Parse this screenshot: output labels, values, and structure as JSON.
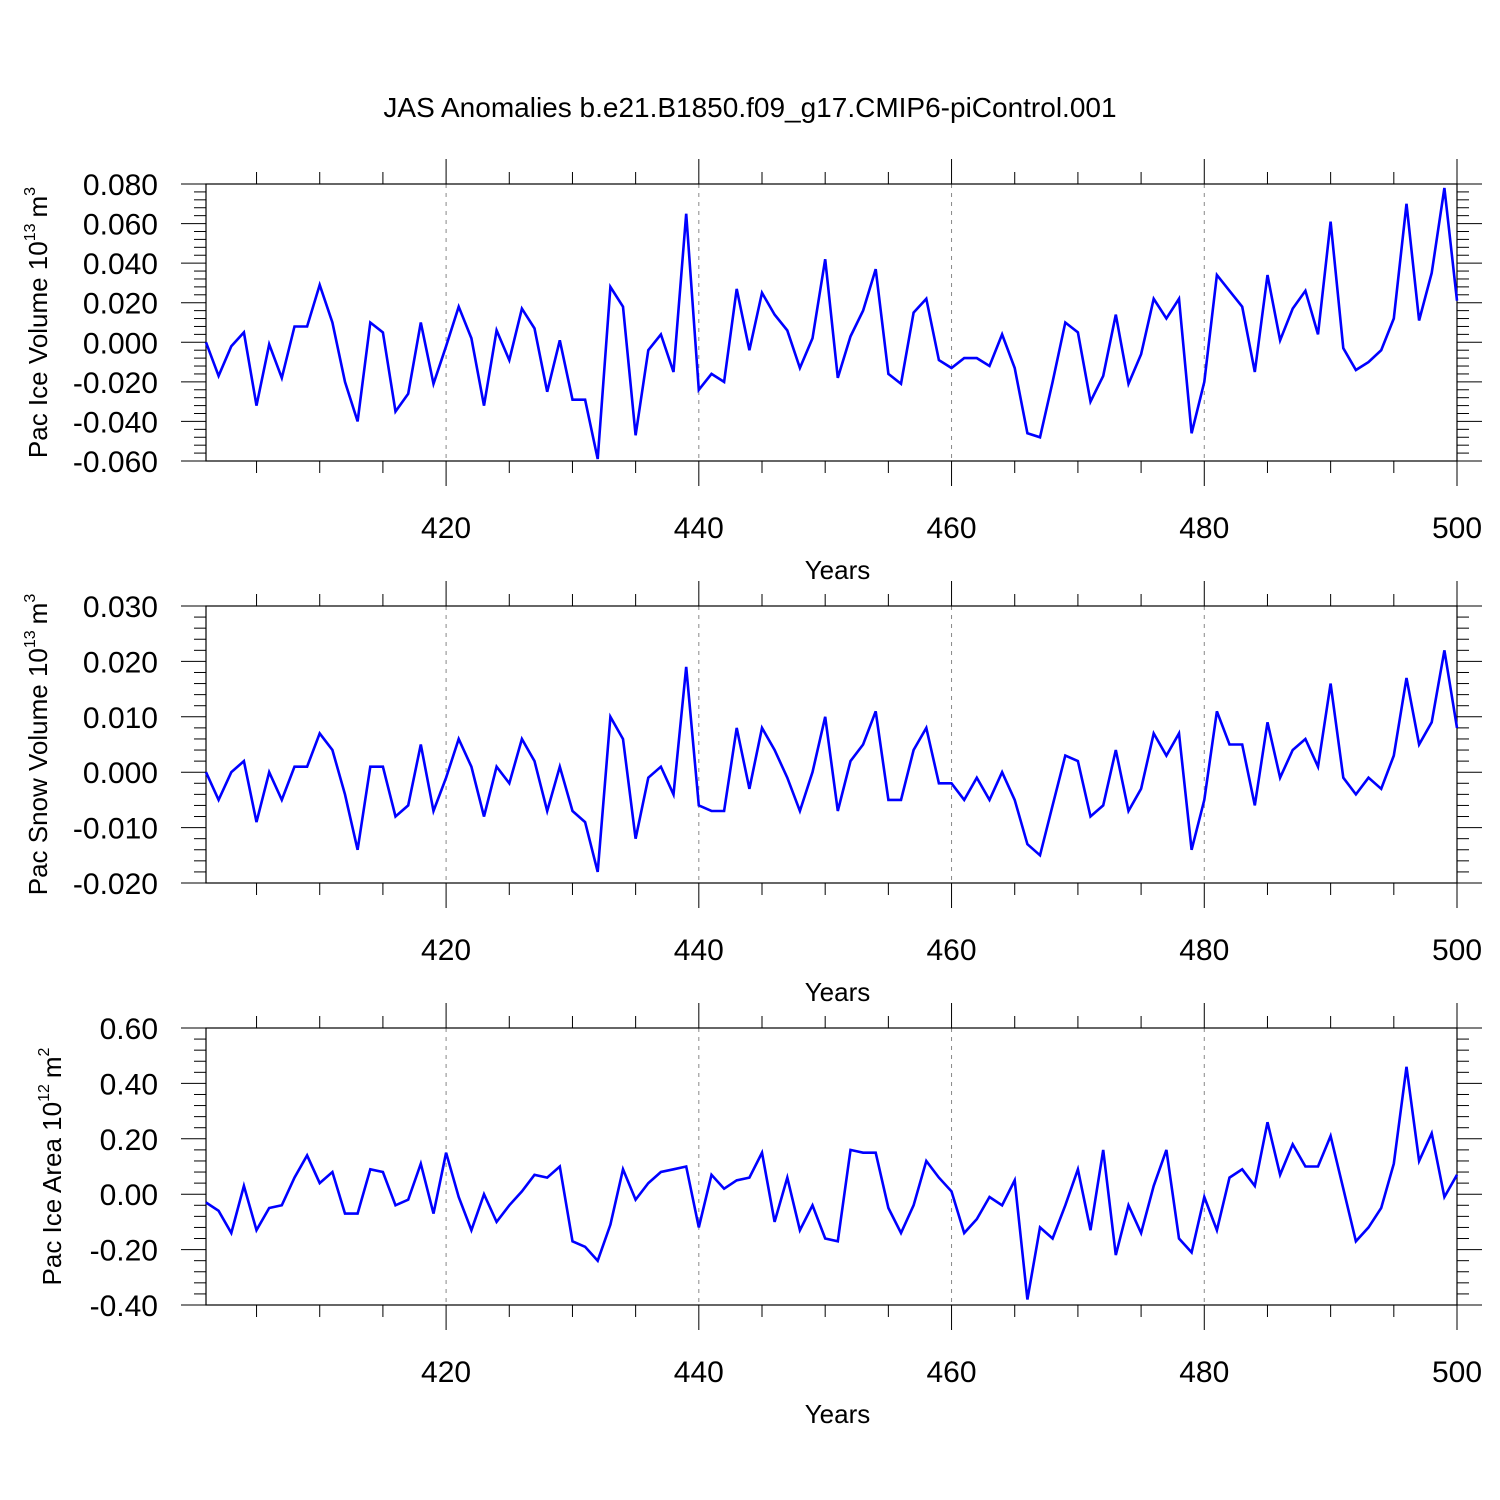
{
  "title": "JAS Anomalies b.e21.B1850.f09_g17.CMIP6-piControl.001",
  "line_color": "#0000ff",
  "grid_color": "#888888",
  "chart_data": [
    {
      "type": "line",
      "xlabel": "Years",
      "ylabel": {
        "text": "Pac Ice Volume 10",
        "exp": "13",
        "unit": "m",
        "unit_exp": "3"
      },
      "xlim": [
        401,
        500
      ],
      "ylim": [
        -0.06,
        0.08
      ],
      "xticks": [
        {
          "v": 420,
          "label": "420"
        },
        {
          "v": 440,
          "label": "440"
        },
        {
          "v": 460,
          "label": "460"
        },
        {
          "v": 480,
          "label": "480"
        },
        {
          "v": 500,
          "label": "500"
        }
      ],
      "yticks": [
        {
          "v": 0.08,
          "label": "0.080"
        },
        {
          "v": 0.06,
          "label": "0.060"
        },
        {
          "v": 0.04,
          "label": "0.040"
        },
        {
          "v": 0.02,
          "label": "0.020"
        },
        {
          "v": 0.0,
          "label": "0.000"
        },
        {
          "v": -0.02,
          "label": "-0.020"
        },
        {
          "v": -0.04,
          "label": "-0.040"
        },
        {
          "v": -0.06,
          "label": "-0.060"
        }
      ],
      "x_start": 401,
      "values": [
        0.0,
        -0.017,
        -0.002,
        0.005,
        -0.032,
        -0.001,
        -0.018,
        0.008,
        0.008,
        0.029,
        0.01,
        -0.02,
        -0.04,
        0.01,
        0.005,
        -0.035,
        -0.026,
        0.01,
        -0.021,
        -0.002,
        0.018,
        0.002,
        -0.032,
        0.006,
        -0.009,
        0.017,
        0.007,
        -0.025,
        0.001,
        -0.029,
        -0.029,
        -0.059,
        0.028,
        0.018,
        -0.047,
        -0.004,
        0.004,
        -0.015,
        0.065,
        -0.024,
        -0.016,
        -0.02,
        0.027,
        -0.004,
        0.025,
        0.014,
        0.006,
        -0.013,
        0.002,
        0.042,
        -0.018,
        0.003,
        0.016,
        0.037,
        -0.016,
        -0.021,
        0.015,
        0.022,
        -0.009,
        -0.013,
        -0.008,
        -0.008,
        -0.012,
        0.004,
        -0.013,
        -0.046,
        -0.048,
        -0.02,
        0.01,
        0.005,
        -0.03,
        -0.017,
        0.014,
        -0.021,
        -0.006,
        0.022,
        0.012,
        0.022,
        -0.046,
        -0.02,
        0.034,
        0.026,
        0.018,
        -0.015,
        0.034,
        0.001,
        0.017,
        0.026,
        0.004,
        0.061,
        -0.003,
        -0.014,
        -0.01,
        -0.004,
        0.012,
        0.07,
        0.011,
        0.035,
        0.078,
        0.021
      ]
    },
    {
      "type": "line",
      "xlabel": "Years",
      "ylabel": {
        "text": "Pac Snow Volume 10",
        "exp": "13",
        "unit": "m",
        "unit_exp": "3"
      },
      "xlim": [
        401,
        500
      ],
      "ylim": [
        -0.02,
        0.03
      ],
      "xticks": [
        {
          "v": 420,
          "label": "420"
        },
        {
          "v": 440,
          "label": "440"
        },
        {
          "v": 460,
          "label": "460"
        },
        {
          "v": 480,
          "label": "480"
        },
        {
          "v": 500,
          "label": "500"
        }
      ],
      "yticks": [
        {
          "v": 0.03,
          "label": "0.030"
        },
        {
          "v": 0.02,
          "label": "0.020"
        },
        {
          "v": 0.01,
          "label": "0.010"
        },
        {
          "v": 0.0,
          "label": "0.000"
        },
        {
          "v": -0.01,
          "label": "-0.010"
        },
        {
          "v": -0.02,
          "label": "-0.020"
        }
      ],
      "x_start": 401,
      "values": [
        0.0,
        -0.005,
        0.0,
        0.002,
        -0.009,
        0.0,
        -0.005,
        0.001,
        0.001,
        0.007,
        0.004,
        -0.004,
        -0.014,
        0.001,
        0.001,
        -0.008,
        -0.006,
        0.005,
        -0.007,
        -0.001,
        0.006,
        0.001,
        -0.008,
        0.001,
        -0.002,
        0.006,
        0.002,
        -0.007,
        0.001,
        -0.007,
        -0.009,
        -0.018,
        0.01,
        0.006,
        -0.012,
        -0.001,
        0.001,
        -0.004,
        0.019,
        -0.006,
        -0.007,
        -0.007,
        0.008,
        -0.003,
        0.008,
        0.004,
        -0.001,
        -0.007,
        0.0,
        0.01,
        -0.007,
        0.002,
        0.005,
        0.011,
        -0.005,
        -0.005,
        0.004,
        0.008,
        -0.002,
        -0.002,
        -0.005,
        -0.001,
        -0.005,
        0.0,
        -0.005,
        -0.013,
        -0.015,
        -0.006,
        0.003,
        0.002,
        -0.008,
        -0.006,
        0.004,
        -0.007,
        -0.003,
        0.007,
        0.003,
        0.007,
        -0.014,
        -0.005,
        0.011,
        0.005,
        0.005,
        -0.006,
        0.009,
        -0.001,
        0.004,
        0.006,
        0.001,
        0.016,
        -0.001,
        -0.004,
        -0.001,
        -0.003,
        0.003,
        0.017,
        0.005,
        0.009,
        0.022,
        0.008
      ]
    },
    {
      "type": "line",
      "xlabel": "Years",
      "ylabel": {
        "text": "Pac Ice Area 10",
        "exp": "12",
        "unit": "m",
        "unit_exp": "2"
      },
      "xlim": [
        401,
        500
      ],
      "ylim": [
        -0.4,
        0.6
      ],
      "xticks": [
        {
          "v": 420,
          "label": "420"
        },
        {
          "v": 440,
          "label": "440"
        },
        {
          "v": 460,
          "label": "460"
        },
        {
          "v": 480,
          "label": "480"
        },
        {
          "v": 500,
          "label": "500"
        }
      ],
      "yticks": [
        {
          "v": 0.6,
          "label": "0.60"
        },
        {
          "v": 0.4,
          "label": "0.40"
        },
        {
          "v": 0.2,
          "label": "0.20"
        },
        {
          "v": 0.0,
          "label": "0.00"
        },
        {
          "v": -0.2,
          "label": "-0.20"
        },
        {
          "v": -0.4,
          "label": "-0.40"
        }
      ],
      "x_start": 401,
      "values": [
        -0.03,
        -0.06,
        -0.14,
        0.03,
        -0.13,
        -0.05,
        -0.04,
        0.06,
        0.14,
        0.04,
        0.08,
        -0.07,
        -0.07,
        0.09,
        0.08,
        -0.04,
        -0.02,
        0.11,
        -0.07,
        0.15,
        -0.01,
        -0.13,
        0.0,
        -0.1,
        -0.04,
        0.01,
        0.07,
        0.06,
        0.1,
        -0.17,
        -0.19,
        -0.24,
        -0.11,
        0.09,
        -0.02,
        0.04,
        0.08,
        0.09,
        0.1,
        -0.12,
        0.07,
        0.02,
        0.05,
        0.06,
        0.15,
        -0.1,
        0.06,
        -0.13,
        -0.04,
        -0.16,
        -0.17,
        0.16,
        0.15,
        0.15,
        -0.05,
        -0.14,
        -0.04,
        0.12,
        0.06,
        0.01,
        -0.14,
        -0.09,
        -0.01,
        -0.04,
        0.05,
        -0.38,
        -0.12,
        -0.16,
        -0.04,
        0.09,
        -0.13,
        0.16,
        -0.22,
        -0.04,
        -0.14,
        0.03,
        0.16,
        -0.16,
        -0.21,
        -0.01,
        -0.13,
        0.06,
        0.09,
        0.03,
        0.26,
        0.07,
        0.18,
        0.1,
        0.1,
        0.21,
        0.02,
        -0.17,
        -0.12,
        -0.05,
        0.11,
        0.46,
        0.12,
        0.22,
        -0.01,
        0.07
      ]
    }
  ]
}
